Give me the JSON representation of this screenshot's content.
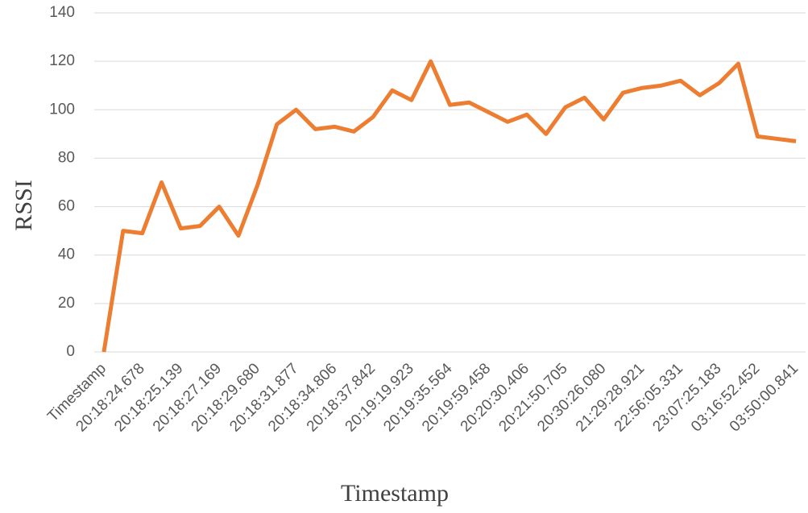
{
  "chart_data": {
    "type": "line",
    "x_label": "Timestamp",
    "y_label": "RSSI",
    "categories": [
      "Timestamp",
      null,
      "20:18:24.678",
      null,
      "20:18:25.139",
      null,
      "20:18:27.169",
      null,
      "20:18:29.680",
      null,
      "20:18:31.877",
      null,
      "20:18:34.806",
      null,
      "20:18:37.842",
      null,
      "20:19:19.923",
      null,
      "20:19:35.564",
      null,
      "20:19:59.458",
      null,
      "20:20:30.406",
      null,
      "20:21:50.705",
      null,
      "20:30:26.080",
      null,
      "21:29:28.921",
      null,
      "22:56:05.331",
      null,
      "23:07:25.183",
      null,
      "03:16:52.452",
      null,
      "03:50:00.841"
    ],
    "series": [
      {
        "name": "RSSI",
        "color": "#ed7d31",
        "values": [
          0,
          50,
          49,
          70,
          51,
          52,
          60,
          48,
          69,
          94,
          100,
          92,
          93,
          91,
          97,
          108,
          104,
          120,
          102,
          103,
          99,
          95,
          98,
          90,
          101,
          105,
          96,
          107,
          109,
          110,
          112,
          106,
          111,
          119,
          89,
          88,
          87
        ]
      }
    ],
    "ylim": [
      0,
      140
    ],
    "yticks": [
      0,
      20,
      40,
      60,
      80,
      100,
      120,
      140
    ],
    "grid": true
  }
}
